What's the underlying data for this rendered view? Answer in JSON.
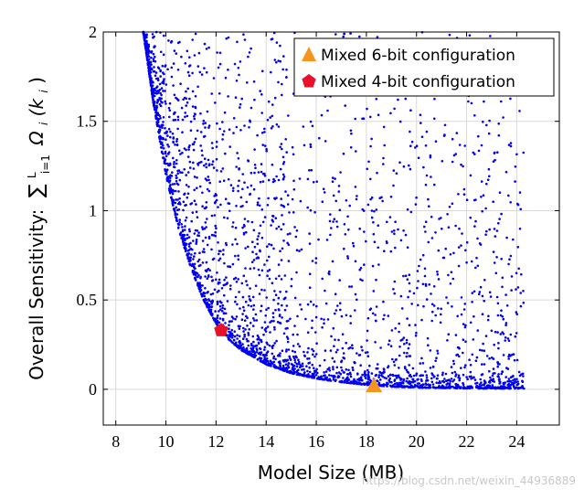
{
  "chart_data": {
    "type": "scatter",
    "xlabel": "Model Size (MB)",
    "ylabel": "Overall Sensitivity: ∑ Ωi(ki), i=1..L",
    "xlim": [
      7.5,
      25.7
    ],
    "ylim": [
      -0.2,
      2.0
    ],
    "xticks": [
      "8",
      "10",
      "12",
      "14",
      "16",
      "18",
      "20",
      "22",
      "24"
    ],
    "yticks": [
      "0",
      "0.5",
      "1",
      "1.5",
      "2"
    ],
    "grid": true,
    "legend_position": "top-right",
    "series": [
      {
        "name": "Mixed 6-bit configuration",
        "marker": "triangle",
        "color": "#f7941d",
        "x": [
          18.3
        ],
        "y": [
          0.02
        ]
      },
      {
        "name": "Mixed 4-bit configuration",
        "marker": "pentagon",
        "color": "#e8102a",
        "x": [
          12.2
        ],
        "y": [
          0.33
        ]
      }
    ],
    "scatter_cloud": {
      "color": "#0000ee",
      "x_range": [
        9.0,
        24.3
      ],
      "y_range": [
        0.0,
        2.0
      ],
      "frontier": [
        [
          9.1,
          2.0
        ],
        [
          9.5,
          1.6
        ],
        [
          10.0,
          1.2
        ],
        [
          10.5,
          0.9
        ],
        [
          11.0,
          0.68
        ],
        [
          11.5,
          0.5
        ],
        [
          12.0,
          0.37
        ],
        [
          12.5,
          0.28
        ],
        [
          13.0,
          0.22
        ],
        [
          14.0,
          0.14
        ],
        [
          15.0,
          0.09
        ],
        [
          16.0,
          0.06
        ],
        [
          17.0,
          0.04
        ],
        [
          18.0,
          0.025
        ],
        [
          19.0,
          0.015
        ],
        [
          20.0,
          0.01
        ],
        [
          22.0,
          0.005
        ],
        [
          24.3,
          0.004
        ]
      ]
    }
  },
  "ylabel_parts": {
    "prefix": "Overall Sensitivity:",
    "sum": "∑",
    "sum_sup": "L",
    "sum_sub": "i=1",
    "omega": "Ω",
    "omega_sub": "i",
    "arg": "(k",
    "arg_sub": "i",
    "close": ")"
  },
  "watermark": "https://blog.csdn.net/weixin_44936889"
}
